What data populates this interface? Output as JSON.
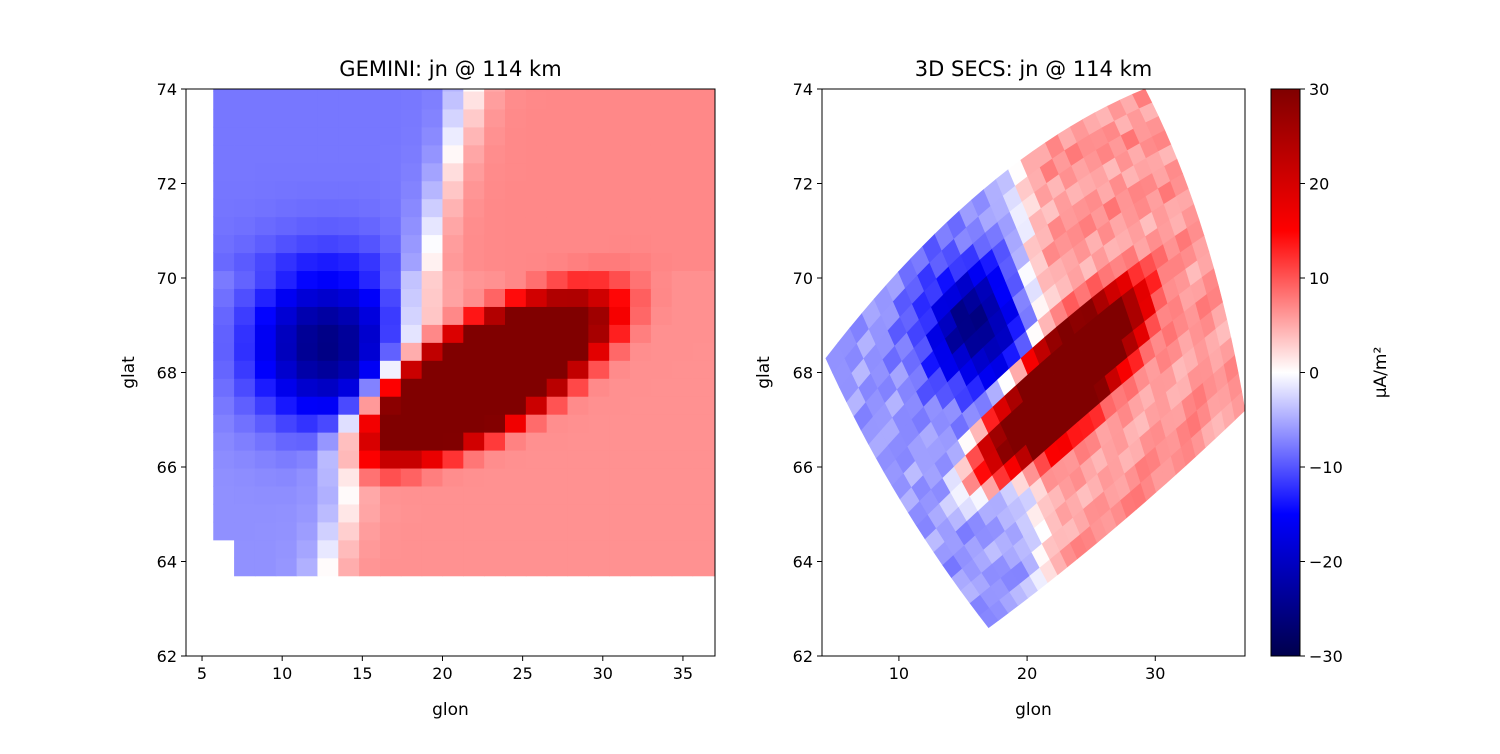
{
  "chart_data": [
    {
      "type": "heatmap",
      "title": "GEMINI: jn @ 114 km",
      "xlabel": "glon",
      "ylabel": "glat",
      "xlim": [
        4,
        37
      ],
      "ylim": [
        62,
        74
      ],
      "xticks": [
        5,
        10,
        15,
        20,
        25,
        30,
        35
      ],
      "yticks": [
        62,
        64,
        66,
        68,
        70,
        72,
        74
      ],
      "grid": false,
      "colormap": "seismic",
      "value_range": [
        -30,
        30
      ],
      "data_extent": {
        "glon": [
          5.7,
          37
        ],
        "glat": [
          63.7,
          74
        ]
      },
      "cell_size": {
        "glon": 1.3,
        "glat": 0.38
      },
      "features": [
        {
          "kind": "positive-core",
          "glon": 22.5,
          "glat": 67.9,
          "peak": 45
        },
        {
          "kind": "negative-core",
          "glon": 12.5,
          "glat": 68.6,
          "peak": -19
        },
        {
          "kind": "positive-background",
          "glon": 28,
          "glat": 66,
          "peak": 6
        },
        {
          "kind": "negative-background",
          "glon": 9,
          "glat": 70.5,
          "peak": -7
        }
      ]
    },
    {
      "type": "heatmap",
      "title": "3D SECS: jn @ 114 km",
      "xlabel": "glon",
      "ylabel": "glat",
      "xlim": [
        4,
        37
      ],
      "ylim": [
        62,
        74
      ],
      "xticks": [
        10,
        20,
        30
      ],
      "yticks": [
        62,
        64,
        66,
        68,
        70,
        72,
        74
      ],
      "grid": false,
      "colormap": "seismic",
      "value_range": [
        -30,
        30
      ],
      "grid_shape": "curved-quadrilateral",
      "corners": {
        "bottom_left": [
          17,
          62.6
        ],
        "left": [
          4.3,
          68.3
        ],
        "top": [
          29.2,
          74
        ],
        "right": [
          37,
          67.2
        ]
      },
      "features": [
        {
          "kind": "positive-core",
          "glon": 22.5,
          "glat": 67.7,
          "peak": 42
        },
        {
          "kind": "negative-core",
          "glon": 16.2,
          "glat": 69.0,
          "peak": -20
        },
        {
          "kind": "positive-background",
          "glon": 28,
          "glat": 68,
          "peak": 6
        },
        {
          "kind": "negative-background",
          "glon": 14,
          "glat": 71,
          "peak": -6
        }
      ],
      "colorbar": {
        "label": "μA/m²",
        "ticks": [
          30,
          20,
          10,
          0,
          -10,
          -20,
          -30
        ],
        "tick_labels": [
          "30",
          "20",
          "10",
          "0",
          "−10",
          "−20",
          "−30"
        ]
      }
    }
  ]
}
